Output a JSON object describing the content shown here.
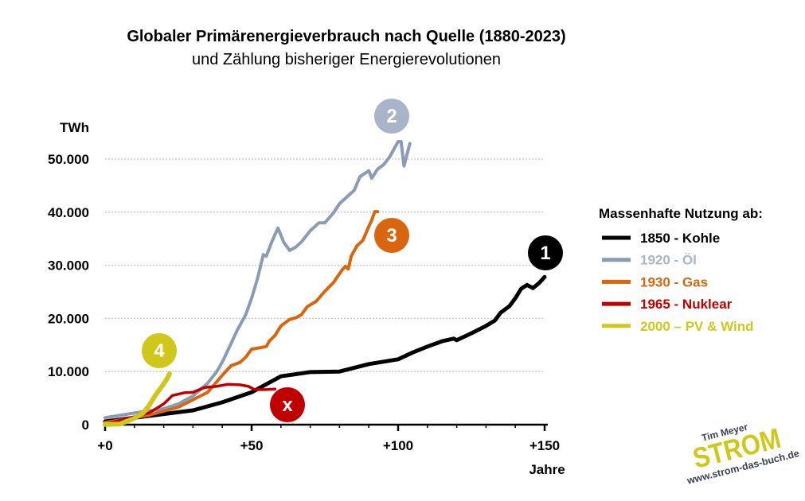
{
  "chart_data": {
    "type": "line",
    "title": "Globaler Primärenergieverbrauch nach Quelle (1880-2023)",
    "subtitle": "und Zählung bisheriger Energierevolutionen",
    "ylabel": "TWh",
    "xlabel": "Jahre",
    "xlim": [
      0,
      150
    ],
    "ylim": [
      0,
      50000
    ],
    "x_ticks": [
      {
        "v": 0,
        "label": "+0"
      },
      {
        "v": 50,
        "label": "+50"
      },
      {
        "v": 100,
        "label": "+100"
      },
      {
        "v": 150,
        "label": "+150"
      }
    ],
    "y_ticks": [
      {
        "v": 0,
        "label": "0"
      },
      {
        "v": 10000,
        "label": "10.000"
      },
      {
        "v": 20000,
        "label": "20.000"
      },
      {
        "v": 30000,
        "label": "30.000"
      },
      {
        "v": 40000,
        "label": "40.000"
      },
      {
        "v": 50000,
        "label": "50.000"
      }
    ],
    "grid": "horizontal dotted",
    "legend": {
      "title": "Massenhafte Nutzung ab:",
      "position": "right"
    },
    "series": [
      {
        "name": "1850 - Kohle",
        "color": "#000000",
        "label_color": "#000000",
        "badge": "1",
        "x": [
          0,
          20,
          30,
          40,
          50,
          55,
          60,
          70,
          80,
          90,
          100,
          105,
          110,
          115,
          119,
          120,
          125,
          130,
          133,
          135,
          138,
          140,
          142,
          144,
          146,
          148,
          150
        ],
        "y": [
          600,
          2000,
          2700,
          4200,
          6100,
          7600,
          9100,
          9900,
          10000,
          11400,
          12300,
          13600,
          14700,
          15700,
          16200,
          15900,
          17200,
          18600,
          19600,
          21100,
          22300,
          23800,
          25600,
          26300,
          25700,
          26600,
          27800
        ]
      },
      {
        "name": "1920 - Öl",
        "color": "#8a9bb5",
        "label_color": "#aab4c8",
        "badge": "2",
        "x": [
          0,
          10,
          20,
          25,
          30,
          35,
          38,
          40,
          42,
          45,
          48,
          50,
          52,
          54,
          55,
          57,
          59,
          61,
          63,
          65,
          67,
          70,
          73,
          75,
          78,
          80,
          83,
          85,
          87,
          90,
          91,
          93,
          95,
          97,
          100,
          101,
          102,
          104
        ],
        "y": [
          1300,
          2200,
          3000,
          3900,
          5400,
          7800,
          9900,
          11800,
          14100,
          17700,
          20700,
          23800,
          27500,
          32000,
          31700,
          34600,
          37000,
          34300,
          32800,
          33400,
          34400,
          36500,
          38000,
          38000,
          39900,
          41600,
          43100,
          44100,
          46700,
          47800,
          46400,
          48100,
          48900,
          50300,
          53300,
          53300,
          48700,
          52900
        ]
      },
      {
        "name": "1930 - Gas",
        "color": "#d9660e",
        "label_color": "#d9660e",
        "badge": "3",
        "x": [
          0,
          15,
          25,
          35,
          40,
          43,
          46,
          48,
          50,
          55,
          56,
          58,
          60,
          63,
          65,
          67,
          69,
          72,
          75,
          78,
          81,
          82,
          83,
          84,
          86,
          88,
          90,
          91,
          92,
          93
        ],
        "y": [
          400,
          1800,
          3300,
          6100,
          9300,
          11100,
          11700,
          12700,
          14200,
          14700,
          15700,
          16800,
          18600,
          19800,
          20100,
          20700,
          22200,
          23200,
          25100,
          26800,
          29200,
          29800,
          29300,
          31700,
          33700,
          34700,
          37300,
          38500,
          40100,
          40100
        ]
      },
      {
        "name": "1965 - Nuklear",
        "color": "#c00000",
        "label_color": "#c00000",
        "badge": "x",
        "x": [
          0,
          15,
          20,
          23,
          27,
          30,
          34,
          38,
          42,
          46,
          49,
          51,
          55,
          58
        ],
        "y": [
          100,
          2200,
          3900,
          5500,
          6000,
          6100,
          7000,
          7200,
          7600,
          7500,
          7200,
          6600,
          6600,
          6700
        ]
      },
      {
        "name": "2000 – PV & Wind",
        "color": "#cfc81a",
        "label_color": "#cfc81a",
        "badge": "4",
        "x": [
          0,
          5,
          10,
          13,
          15,
          17,
          19,
          21,
          22
        ],
        "y": [
          50,
          100,
          1200,
          2200,
          3600,
          5400,
          6900,
          8500,
          9600
        ]
      }
    ]
  },
  "logo": {
    "author": "Tim Meyer",
    "brand": "STROM",
    "url": "www.strom-das-buch.de",
    "brand_color": "#cfc81a",
    "text_color": "#3a4150"
  }
}
